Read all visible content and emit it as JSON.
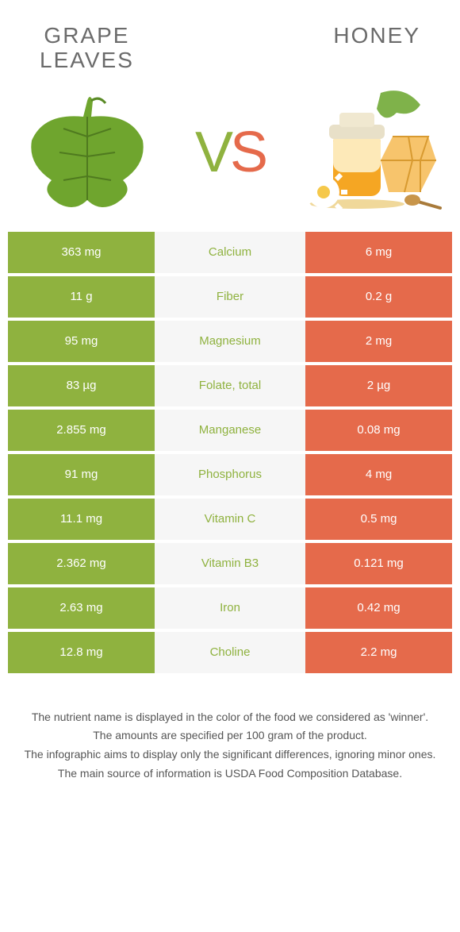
{
  "colors": {
    "left": "#8fb23f",
    "right": "#e56a4b",
    "mid_bg": "#f6f6f6",
    "text": "#5a5a5a",
    "white": "#ffffff",
    "title": "#6b6b6b"
  },
  "foods": {
    "left": {
      "name": "GRAPE\nLEAVES"
    },
    "right": {
      "name": "HONEY"
    }
  },
  "vs": {
    "v": "V",
    "s": "S"
  },
  "nutrients": [
    {
      "label": "Calcium",
      "left": "363 mg",
      "right": "6 mg",
      "winner": "left"
    },
    {
      "label": "Fiber",
      "left": "11 g",
      "right": "0.2 g",
      "winner": "left"
    },
    {
      "label": "Magnesium",
      "left": "95 mg",
      "right": "2 mg",
      "winner": "left"
    },
    {
      "label": "Folate, total",
      "left": "83 µg",
      "right": "2 µg",
      "winner": "left"
    },
    {
      "label": "Manganese",
      "left": "2.855 mg",
      "right": "0.08 mg",
      "winner": "left"
    },
    {
      "label": "Phosphorus",
      "left": "91 mg",
      "right": "4 mg",
      "winner": "left"
    },
    {
      "label": "Vitamin C",
      "left": "11.1 mg",
      "right": "0.5 mg",
      "winner": "left"
    },
    {
      "label": "Vitamin B3",
      "left": "2.362 mg",
      "right": "0.121 mg",
      "winner": "left"
    },
    {
      "label": "Iron",
      "left": "2.63 mg",
      "right": "0.42 mg",
      "winner": "left"
    },
    {
      "label": "Choline",
      "left": "12.8 mg",
      "right": "2.2 mg",
      "winner": "left"
    }
  ],
  "footer": {
    "line1": "The nutrient name is displayed in the color of the food we considered as 'winner'.",
    "line2": "The amounts are specified per 100 gram of the product.",
    "line3": "The infographic aims to display only the significant differences, ignoring minor ones.",
    "line4": "The main source of information is USDA Food Composition Database."
  }
}
